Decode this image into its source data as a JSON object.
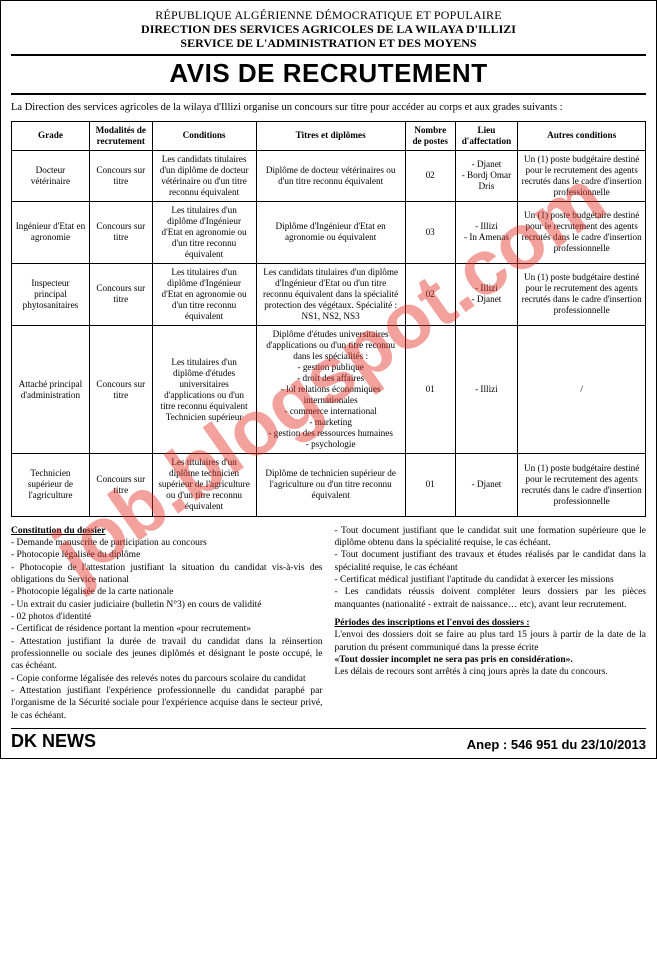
{
  "header": {
    "line1": "RÉPUBLIQUE ALGÉRIENNE DÉMOCRATIQUE ET POPULAIRE",
    "line2": "DIRECTION DES SERVICES AGRICOLES DE LA WILAYA D'ILLIZI",
    "line3": "SERVICE DE L'ADMINISTRATION ET DES MOYENS"
  },
  "title": "AVIS DE RECRUTEMENT",
  "intro": "La Direction des services agricoles de la wilaya d'Illizi organise un concours sur titre pour accéder au corps et aux grades suivants :",
  "table": {
    "headers": [
      "Grade",
      "Modalités de recrutement",
      "Conditions",
      "Titres et diplômes",
      "Nombre de postes",
      "Lieu d'affectation",
      "Autres conditions"
    ],
    "rows": [
      {
        "grade": "Docteur vétérinaire",
        "modalites": "Concours sur titre",
        "conditions": "Les candidats titulaires d'un diplôme de docteur vétérinaire ou d'un titre reconnu équivalent",
        "titres": "Diplôme de docteur vétérinaires ou d'un titre reconnu équivalent",
        "nb": "02",
        "lieu": "- Djanet\n- Bordj Omar Dris",
        "autres": "Un (1) poste budgétaire destiné pour le recrutement des agents recrutés dans le cadre d'insertion professionnelle"
      },
      {
        "grade": "Ingénieur d'Etat en agronomie",
        "modalites": "Concours sur titre",
        "conditions": "Les titulaires d'un diplôme d'Ingénieur d'Etat en agronomie ou d'un titre reconnu équivalent",
        "titres": "Diplôme d'Ingénieur d'Etat en agronomie ou équivalent",
        "nb": "03",
        "lieu": "- Illizi\n- In Amenas",
        "autres": "Un (1) poste budgétaire destiné pour le recrutement des agents recrutés dans le cadre d'insertion professionnelle"
      },
      {
        "grade": "Inspecteur principal phytosanitaires",
        "modalites": "Concours sur titre",
        "conditions": "Les titulaires d'un diplôme d'Ingénieur d'Etat en agronomie ou d'un titre reconnu équivalent",
        "titres": "Les candidats titulaires d'un diplôme d'Ingénieur d'Etat ou d'un titre reconnu équivalent dans la spécialité protection des végétaux. Spécialité : NS1, NS2, NS3",
        "nb": "02",
        "lieu": "- Illizi\n- Djanet",
        "autres": "Un (1) poste budgétaire destiné pour le recrutement des agents recrutés dans le cadre d'insertion professionnelle"
      },
      {
        "grade": "Attaché principal d'administration",
        "modalites": "Concours sur titre",
        "conditions": "Les titulaires d'un diplôme d'études universitaires d'applications ou d'un titre reconnu équivalent Technicien supérieur",
        "titres": "Diplôme d'études universitaires d'applications ou d'un titre reconnu dans les spécialités :\n- gestion publique\n- droit des affaires\n- lol relations économiques internationales\n- commerce international\n- marketing\n- gestion des ressources humaines\n- psychologie",
        "nb": "01",
        "lieu": "- Illizi",
        "autres": "/"
      },
      {
        "grade": "Technicien supérieur de l'agriculture",
        "modalites": "Concours sur titre",
        "conditions": "Les titulaires d'un diplôme technicien supérieur de l'agriculture ou d'un titre reconnu équivalent",
        "titres": "Diplôme de technicien supérieur de l'agriculture ou d'un titre reconnu équivalent",
        "nb": "01",
        "lieu": "- Djanet",
        "autres": "Un (1) poste budgétaire destiné pour le recrutement des agents recrutés dans le cadre d'insertion professionnelle"
      }
    ]
  },
  "dossier": {
    "heading": "Constitution du dossier",
    "left": [
      "Demande manuscrite de participation au concours",
      "Photocopie légalisée du diplôme",
      "Photocopie de l'attestation justifiant la situation du candidat vis-à-vis des obligations du Service national",
      "Photocopie légalisée de la carte nationale",
      "Un extrait du casier judiciaire (bulletin N°3) en cours de validité",
      "02 photos d'identité",
      "Certificat de résidence portant la mention «pour recrutement»",
      "Attestation justifiant la durée de travail du candidat dans la réinsertion professionnelle ou sociale des jeunes diplômés et désignant le poste occupé, le cas échéant.",
      "Copie conforme légalisée des relevés notes du parcours scolaire du candidat",
      "Attestation justifiant l'expérience professionnelle du candidat paraphé par l'organisme de la Sécurité sociale pour l'expérience acquise dans le secteur privé, le cas échéant."
    ],
    "right_pre": [
      "Tout document justifiant que le candidat suit une formation supérieure que le diplôme obtenu dans la spécialité requise, le cas échéant.",
      "Tout document justifiant des travaux et études réalisés par le candidat dans la spécialité requise, le cas échéant",
      "Certificat médical justifiant l'aptitude du candidat à exercer les missions",
      "Les candidats réussis doivent compléter leurs dossiers par les pièces manquantes (nationalité - extrait de naissance… etc), avant leur recrutement."
    ],
    "periodes_heading": "Périodes des inscriptions et l'envoi des dossiers :",
    "periodes_p1": "L'envoi des dossiers doit se faire au plus tard 15 jours à partir de la date de la parution du présent communiqué dans la presse écrite",
    "periodes_bold": "«Tout dossier incomplet ne sera pas pris en considération».",
    "periodes_p2": "Les délais de recours sont arrêtés à cinq jours après la date du concours."
  },
  "footer": {
    "source": "DK NEWS",
    "anep": "Anep : 546 951 du 23/10/2013"
  },
  "watermark": "job.blogspot.com",
  "colors": {
    "watermark": "#e53127",
    "border": "#000000"
  }
}
